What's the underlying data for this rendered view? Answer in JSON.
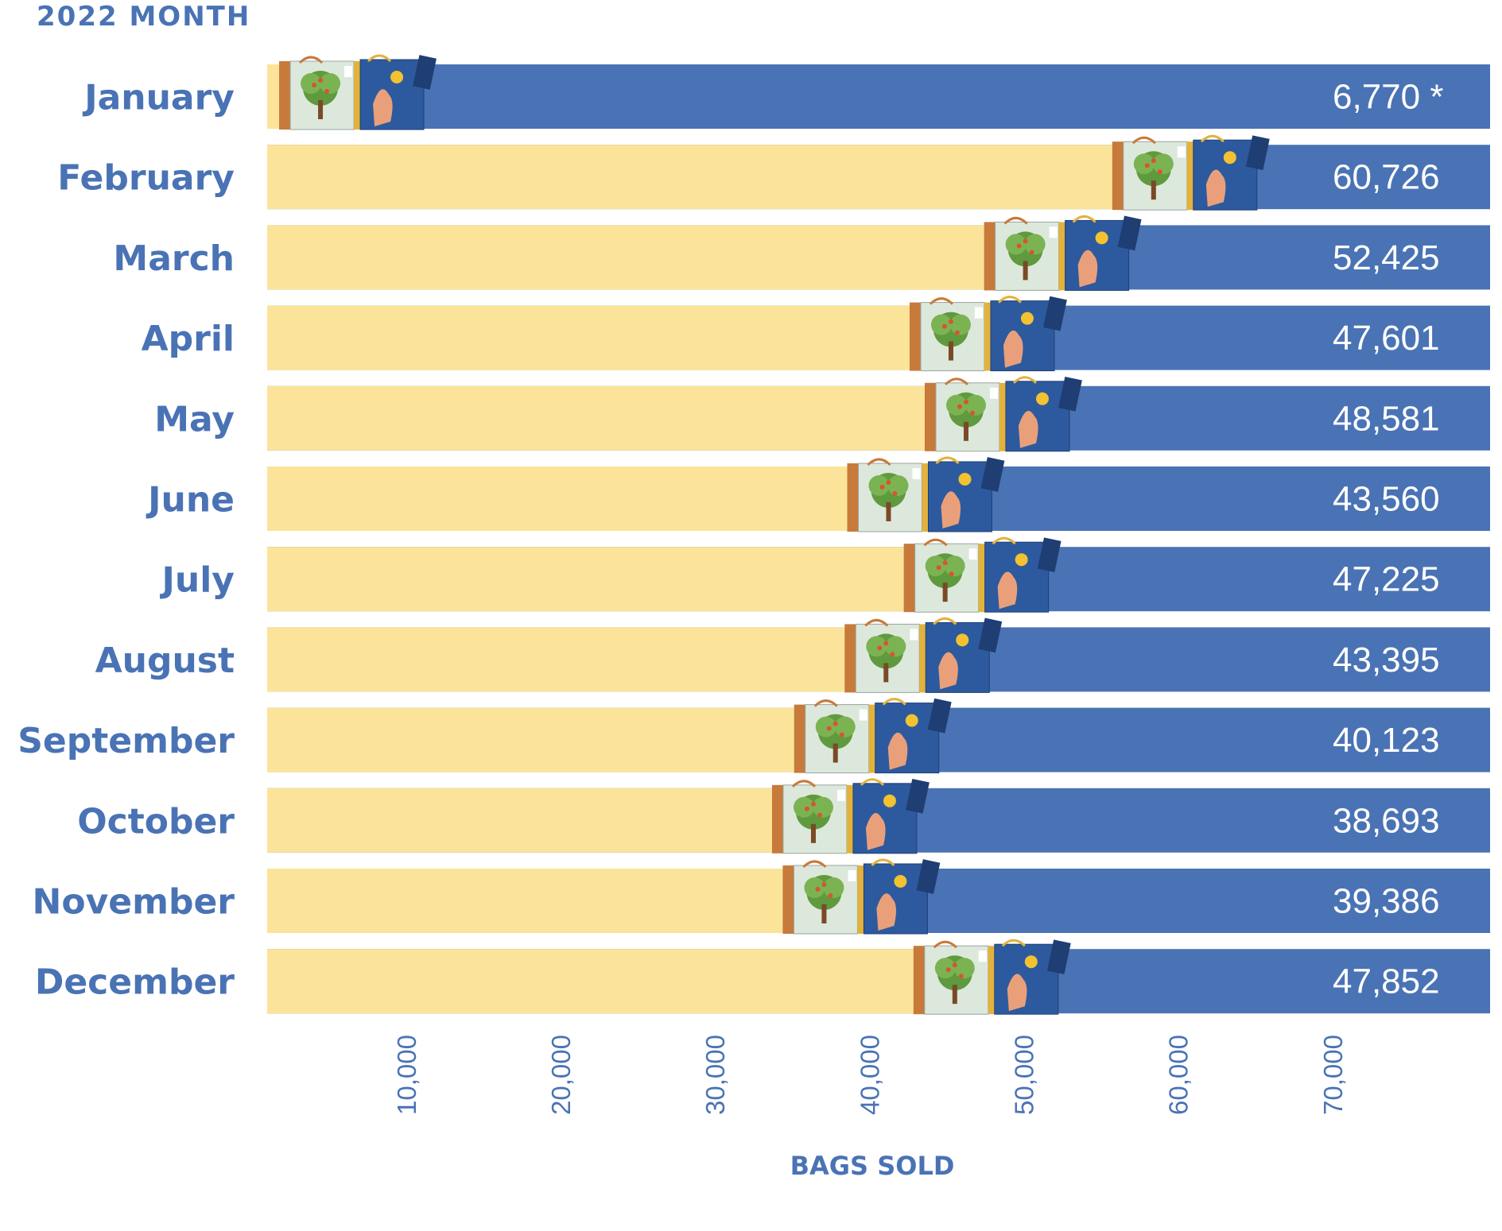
{
  "chart_data": {
    "type": "bar",
    "orientation": "horizontal",
    "y_title": "2022 MONTH",
    "xlabel": "BAGS SOLD",
    "categories": [
      "January",
      "February",
      "March",
      "April",
      "May",
      "June",
      "July",
      "August",
      "September",
      "October",
      "November",
      "December"
    ],
    "value_labels": [
      "6,770 *",
      "60,726",
      "52,425",
      "47,601",
      "48,581",
      "43,560",
      "47,225",
      "43,395",
      "40,123",
      "38,693",
      "39,386",
      "47,852"
    ],
    "values": [
      6770,
      60726,
      52425,
      47601,
      48581,
      43560,
      47225,
      43395,
      40123,
      38693,
      39386,
      47852
    ],
    "xticks": [
      10000,
      20000,
      30000,
      40000,
      50000,
      60000,
      70000
    ],
    "xtick_labels": [
      "10,000",
      "20,000",
      "30,000",
      "40,000",
      "50,000",
      "60,000",
      "70,000"
    ],
    "xlim": [
      1000,
      80200
    ],
    "colors": {
      "filled": "#fbe49a",
      "remaining": "#4a73b5",
      "text": "#4a73b5",
      "value_text": "#ffffff"
    },
    "marker_icon": "tote-bags-icon"
  }
}
